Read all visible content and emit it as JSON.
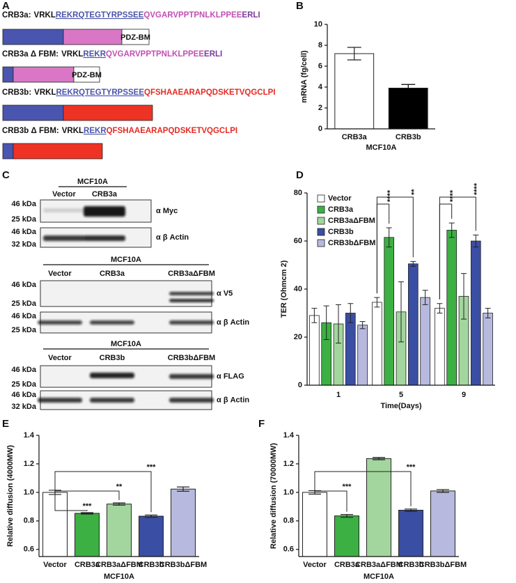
{
  "panel_a": {
    "label": "A",
    "constructs": [
      {
        "name": "CRB3a:",
        "prefix": "VRKL",
        "fbm": "REKRQTEGTYRPSSEE",
        "tail": "QVGARVPPTPNLKLPPEE",
        "pdz": "ERLI",
        "domain": "PDZ-BM"
      },
      {
        "name": "CRB3a Δ FBM:",
        "prefix": "VRKL",
        "fbm": "REKR",
        "tail": "QVGARVPPTPNLKLPPEE",
        "pdz": "ERLI",
        "domain": "PDZ-BM"
      },
      {
        "name": "CRB3b:",
        "prefix": "VRKL",
        "fbm": "REKRQTEGTYRPSSEE",
        "tail": "QFSHAAEARAPQDSKETVQGCLPI"
      },
      {
        "name": "CRB3b Δ FBM:",
        "prefix": "VRKL",
        "fbm": "REKR",
        "tail": "QFSHAAEARAPQDSKETVQGCLPI"
      }
    ]
  },
  "panel_c": {
    "label": "C",
    "blots": [
      {
        "cell_line": "MCF10A",
        "lanes": [
          "Vector",
          "CRB3a"
        ],
        "rows": [
          {
            "markers": [
              "46 kDa",
              "25 kDa"
            ],
            "antibody": "α Myc"
          },
          {
            "markers": [
              "46 kDa",
              "32 kDa"
            ],
            "antibody": "α β Actin"
          }
        ]
      },
      {
        "cell_line": "MCF10A",
        "lanes": [
          "Vector",
          "CRB3a",
          "CRB3aΔFBM"
        ],
        "rows": [
          {
            "markers": [
              "46 kDa",
              "25 kDa"
            ],
            "antibody": "α V5"
          },
          {
            "markers": [
              "46 kDa",
              "25 kDa"
            ],
            "antibody": "α β Actin"
          }
        ]
      },
      {
        "cell_line": "MCF10A",
        "lanes": [
          "Vector",
          "CRB3b",
          "CRB3bΔFBM"
        ],
        "rows": [
          {
            "markers": [
              "46 kDa",
              "25 kDa"
            ],
            "antibody": "α FLAG"
          },
          {
            "markers": [
              "46 kDa",
              "32 kDa"
            ],
            "antibody": "α β Actin"
          }
        ]
      }
    ]
  },
  "chart_data": [
    {
      "panel": "B",
      "type": "bar",
      "y_label": "mRNA (fg/cell)",
      "x_label": "MCF10A",
      "categories": [
        "CRB3a",
        "CRB3b"
      ],
      "values": [
        7.2,
        3.9
      ],
      "errors": [
        0.6,
        0.35
      ],
      "colors": [
        "#ffffff",
        "#000000"
      ],
      "ylim": [
        0,
        10
      ],
      "yticks": [
        0,
        2,
        4,
        6,
        8,
        10
      ]
    },
    {
      "panel": "D",
      "type": "bar",
      "y_label": "TER (Ohmcm 2)",
      "x_label": "Time(Days)",
      "categories": [
        "1",
        "5",
        "9"
      ],
      "legend": "upper left",
      "series": [
        {
          "name": "Vector",
          "color": "#ffffff",
          "values": [
            29,
            34.5,
            32
          ],
          "errors": [
            3,
            2,
            2
          ]
        },
        {
          "name": "CRB3a",
          "color": "#3cb043",
          "values": [
            26,
            61.5,
            64.5
          ],
          "errors": [
            7,
            4,
            3
          ]
        },
        {
          "name": "CRB3aΔFBM",
          "color": "#a3d69e",
          "values": [
            25.5,
            30.5,
            37
          ],
          "errors": [
            8,
            12.5,
            9.5
          ]
        },
        {
          "name": "CRB3b",
          "color": "#3a4ea3",
          "values": [
            30,
            50.5,
            60
          ],
          "errors": [
            4,
            1,
            2.5
          ]
        },
        {
          "name": "CRB3bΔFBM",
          "color": "#b8b9de",
          "values": [
            25,
            36.5,
            30
          ],
          "errors": [
            1.5,
            3,
            2
          ]
        }
      ],
      "ylim": [
        0,
        80
      ],
      "yticks": [
        0,
        20,
        40,
        60,
        80
      ],
      "annotations": [
        {
          "text": "****",
          "category": "5",
          "from": "Vector",
          "to": "CRB3a"
        },
        {
          "text": "**",
          "category": "5",
          "from": "Vector",
          "to": "CRB3b"
        },
        {
          "text": "****",
          "category": "9",
          "from": "Vector",
          "to": "CRB3a"
        },
        {
          "text": "****",
          "category": "9",
          "from": "Vector",
          "to": "CRB3b"
        }
      ]
    },
    {
      "panel": "E",
      "type": "bar",
      "y_label": "Relative diffusion (4000MW)",
      "x_label": "MCF10A",
      "categories": [
        "Vector",
        "CRB3a",
        "CRB3aΔFBM",
        "CRB3b",
        "CRB3bΔFBM"
      ],
      "values": [
        1.0,
        0.853,
        0.918,
        0.833,
        1.023
      ],
      "errors": [
        0.015,
        0.005,
        0.008,
        0.008,
        0.015
      ],
      "colors": [
        "#ffffff",
        "#3cb043",
        "#a3d69e",
        "#3a4ea3",
        "#b8b9de"
      ],
      "ylim": [
        0.55,
        1.4
      ],
      "yticks": [
        0.6,
        0.8,
        {
          "value": 1,
          "label": "1.0"
        },
        1.2,
        1.4
      ],
      "annotations": [
        {
          "text": "***",
          "from": "Vector",
          "to": "CRB3a"
        },
        {
          "text": "**",
          "from": "Vector",
          "to": "CRB3aΔFBM"
        },
        {
          "text": "***",
          "from": "Vector",
          "to": "CRB3b"
        }
      ]
    },
    {
      "panel": "F",
      "type": "bar",
      "y_label": "Relative diffusion (70000MW)",
      "x_label": "MCF10A",
      "categories": [
        "Vector",
        "CRB3a",
        "CRB3aΔFBM",
        "CRB3b",
        "CRB3bΔFBM"
      ],
      "values": [
        1.0,
        0.835,
        1.237,
        0.875,
        1.01
      ],
      "errors": [
        0.012,
        0.01,
        0.008,
        0.008,
        0.01
      ],
      "colors": [
        "#ffffff",
        "#3cb043",
        "#a3d69e",
        "#3a4ea3",
        "#b8b9de"
      ],
      "ylim": [
        0.55,
        1.4
      ],
      "yticks": [
        0.6,
        0.8,
        {
          "value": 1,
          "label": "1.0"
        },
        1.2,
        1.4
      ],
      "annotations": [
        {
          "text": "***",
          "from": "Vector",
          "to": "CRB3a"
        },
        {
          "text": "***",
          "from": "Vector",
          "to": "CRB3b"
        }
      ]
    }
  ]
}
